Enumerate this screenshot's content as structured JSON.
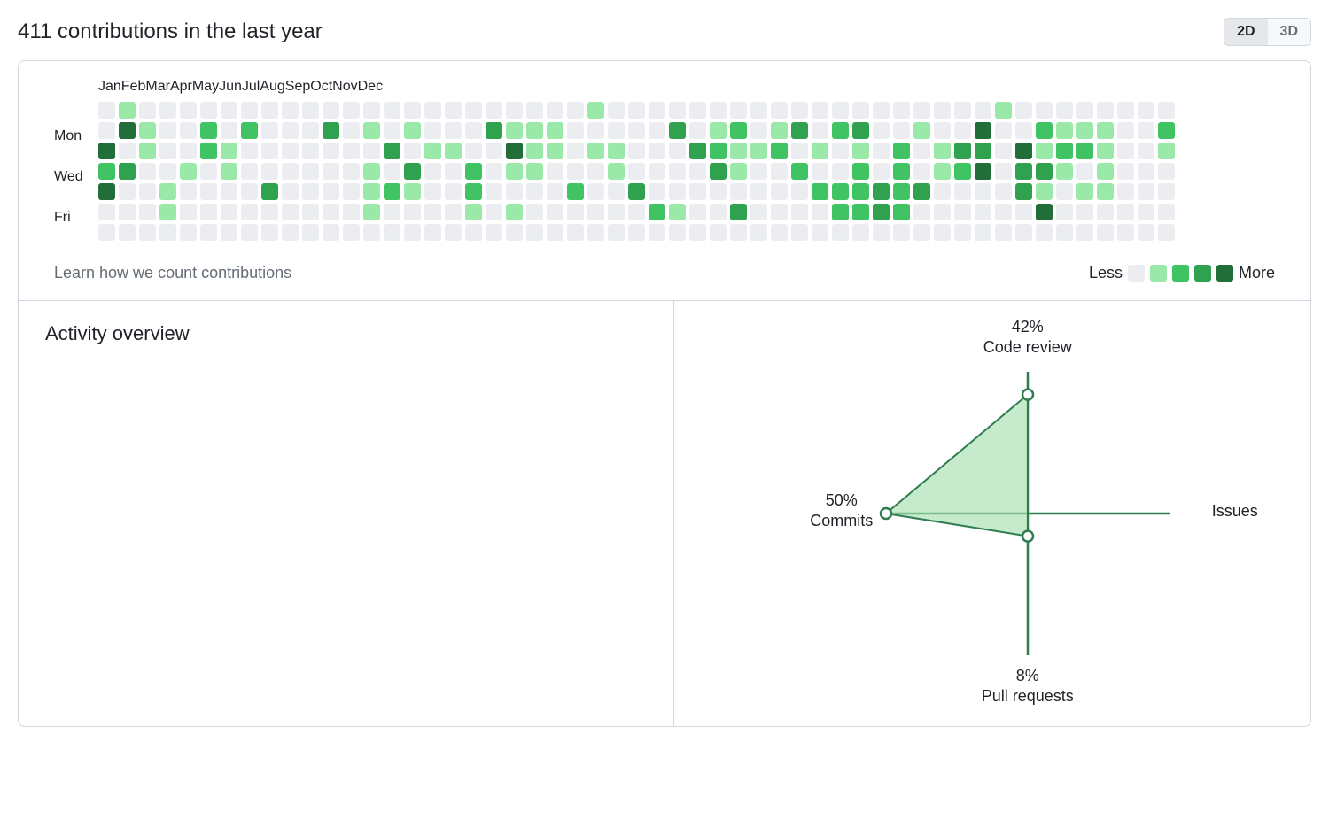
{
  "title": "411 contributions in the last year",
  "view_toggle": {
    "option1": "2D",
    "option2": "3D",
    "active": "2D"
  },
  "calendar": {
    "type": "contribution-heatmap",
    "cell_size": 19,
    "cell_gap": 4,
    "cell_radius": 3,
    "level_colors": [
      "#ebedf0",
      "#9be9a8",
      "#40c463",
      "#30a14e",
      "#216e39"
    ],
    "months": [
      {
        "label": "Jan",
        "week": 0
      },
      {
        "label": "Feb",
        "week": 4
      },
      {
        "label": "Mar",
        "week": 8
      },
      {
        "label": "Apr",
        "week": 13
      },
      {
        "label": "May",
        "week": 17
      },
      {
        "label": "Jun",
        "week": 21
      },
      {
        "label": "Jul",
        "week": 26
      },
      {
        "label": "Aug",
        "week": 30
      },
      {
        "label": "Sep",
        "week": 34
      },
      {
        "label": "Oct",
        "week": 39
      },
      {
        "label": "Nov",
        "week": 43
      },
      {
        "label": "Dec",
        "week": 47
      }
    ],
    "day_labels": [
      "",
      "Mon",
      "",
      "Wed",
      "",
      "Fri",
      ""
    ],
    "weeks": [
      [
        0,
        0,
        4,
        2,
        4,
        0,
        0
      ],
      [
        1,
        4,
        0,
        3,
        0,
        0,
        0
      ],
      [
        0,
        1,
        1,
        0,
        0,
        0,
        0
      ],
      [
        0,
        0,
        0,
        0,
        1,
        1,
        0
      ],
      [
        0,
        0,
        0,
        1,
        0,
        0,
        0
      ],
      [
        0,
        2,
        2,
        0,
        0,
        0,
        0
      ],
      [
        0,
        0,
        1,
        1,
        0,
        0,
        0
      ],
      [
        0,
        2,
        0,
        0,
        0,
        0,
        0
      ],
      [
        0,
        0,
        0,
        0,
        3,
        0,
        0
      ],
      [
        0,
        0,
        0,
        0,
        0,
        0,
        0
      ],
      [
        0,
        0,
        0,
        0,
        0,
        0,
        0
      ],
      [
        0,
        3,
        0,
        0,
        0,
        0,
        0
      ],
      [
        0,
        0,
        0,
        0,
        0,
        0,
        0
      ],
      [
        0,
        1,
        0,
        1,
        1,
        1,
        0
      ],
      [
        0,
        0,
        3,
        0,
        2,
        0,
        0
      ],
      [
        0,
        1,
        0,
        3,
        1,
        0,
        0
      ],
      [
        0,
        0,
        1,
        0,
        0,
        0,
        0
      ],
      [
        0,
        0,
        1,
        0,
        0,
        0,
        0
      ],
      [
        0,
        0,
        0,
        2,
        2,
        1,
        0
      ],
      [
        0,
        3,
        0,
        0,
        0,
        0,
        0
      ],
      [
        0,
        1,
        4,
        1,
        0,
        1,
        0
      ],
      [
        0,
        1,
        1,
        1,
        0,
        0,
        0
      ],
      [
        0,
        1,
        1,
        0,
        0,
        0,
        0
      ],
      [
        0,
        0,
        0,
        0,
        2,
        0,
        0
      ],
      [
        1,
        0,
        1,
        0,
        0,
        0,
        0
      ],
      [
        0,
        0,
        1,
        1,
        0,
        0,
        0
      ],
      [
        0,
        0,
        0,
        0,
        3,
        0,
        0
      ],
      [
        0,
        0,
        0,
        0,
        0,
        2,
        0
      ],
      [
        0,
        3,
        0,
        0,
        0,
        1,
        0
      ],
      [
        0,
        0,
        3,
        0,
        0,
        0,
        0
      ],
      [
        0,
        1,
        2,
        3,
        0,
        0,
        0
      ],
      [
        0,
        2,
        1,
        1,
        0,
        3,
        0
      ],
      [
        0,
        0,
        1,
        0,
        0,
        0,
        0
      ],
      [
        0,
        1,
        2,
        0,
        0,
        0,
        0
      ],
      [
        0,
        3,
        0,
        2,
        0,
        0,
        0
      ],
      [
        0,
        0,
        1,
        0,
        2,
        0,
        0
      ],
      [
        0,
        2,
        0,
        0,
        2,
        2,
        0
      ],
      [
        0,
        3,
        1,
        2,
        2,
        2,
        0
      ],
      [
        0,
        0,
        0,
        0,
        3,
        3,
        0
      ],
      [
        0,
        0,
        2,
        2,
        2,
        2,
        0
      ],
      [
        0,
        1,
        0,
        0,
        3,
        0,
        0
      ],
      [
        0,
        0,
        1,
        1,
        0,
        0,
        0
      ],
      [
        0,
        0,
        3,
        2,
        0,
        0,
        0
      ],
      [
        0,
        4,
        3,
        4,
        0,
        0,
        0
      ],
      [
        1,
        0,
        0,
        0,
        0,
        0,
        0
      ],
      [
        0,
        0,
        4,
        3,
        3,
        0,
        0
      ],
      [
        0,
        2,
        1,
        3,
        1,
        4,
        0
      ],
      [
        0,
        1,
        2,
        1,
        0,
        0,
        0
      ],
      [
        0,
        1,
        2,
        0,
        1,
        0,
        0
      ],
      [
        0,
        1,
        1,
        1,
        1,
        0,
        0
      ],
      [
        0,
        0,
        0,
        0,
        0,
        0,
        0
      ],
      [
        0,
        0,
        0,
        0,
        0,
        0,
        0
      ],
      [
        0,
        2,
        1,
        0,
        0,
        0,
        0
      ]
    ],
    "learn_link": "Learn how we count contributions",
    "legend": {
      "less": "Less",
      "more": "More"
    }
  },
  "activity": {
    "title": "Activity overview",
    "radar": {
      "type": "radar",
      "axis_color": "#2f7d4f",
      "fill_color": "#a6e0b0",
      "fill_opacity": 0.65,
      "point_stroke": "#2f7d4f",
      "point_fill": "#ffffff",
      "axes": [
        {
          "label": "Code review",
          "percent": "42%",
          "value": 0.84,
          "angle": 90
        },
        {
          "label": "Issues",
          "percent": "",
          "value": 0.0,
          "angle": 0
        },
        {
          "label": "Pull requests",
          "percent": "8%",
          "value": 0.16,
          "angle": 270
        },
        {
          "label": "Commits",
          "percent": "50%",
          "value": 1.0,
          "angle": 180
        }
      ]
    }
  }
}
